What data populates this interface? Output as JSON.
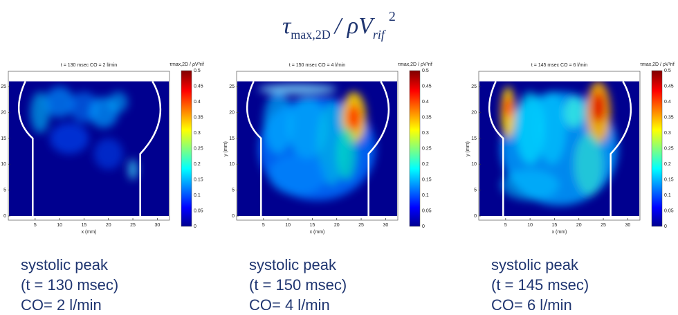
{
  "title": {
    "symbol": "τ",
    "symbol_sub": "max,2D",
    "middle": "/ ρV",
    "middle_sub": "rif",
    "power": "2"
  },
  "colorbar_label": "τmax,2D / ρV²rif",
  "x_label": "x (mm)",
  "y_label": "y (mm)",
  "x_ticks": [
    5,
    10,
    15,
    20,
    25,
    30
  ],
  "y_ticks": [
    0,
    5,
    10,
    15,
    20,
    25
  ],
  "colorbar_ticks": [
    0,
    0.05,
    0.1,
    0.15,
    0.2,
    0.25,
    0.3,
    0.35,
    0.4,
    0.45,
    0.5
  ],
  "panels": [
    {
      "header": "t = 130 msec     CO = 2 l/min",
      "caption": [
        "systolic peak",
        "(t = 130 msec)",
        "CO= 2 l/min"
      ]
    },
    {
      "header": "t = 150 msec     CO = 4 l/min",
      "caption": [
        "systolic peak",
        "(t = 150 msec)",
        "CO= 4 l/min"
      ]
    },
    {
      "header": "t = 145 msec     CO = 6 l/min",
      "caption": [
        "systolic peak",
        "(t = 145 msec)",
        "CO= 6 l/min"
      ]
    }
  ]
}
